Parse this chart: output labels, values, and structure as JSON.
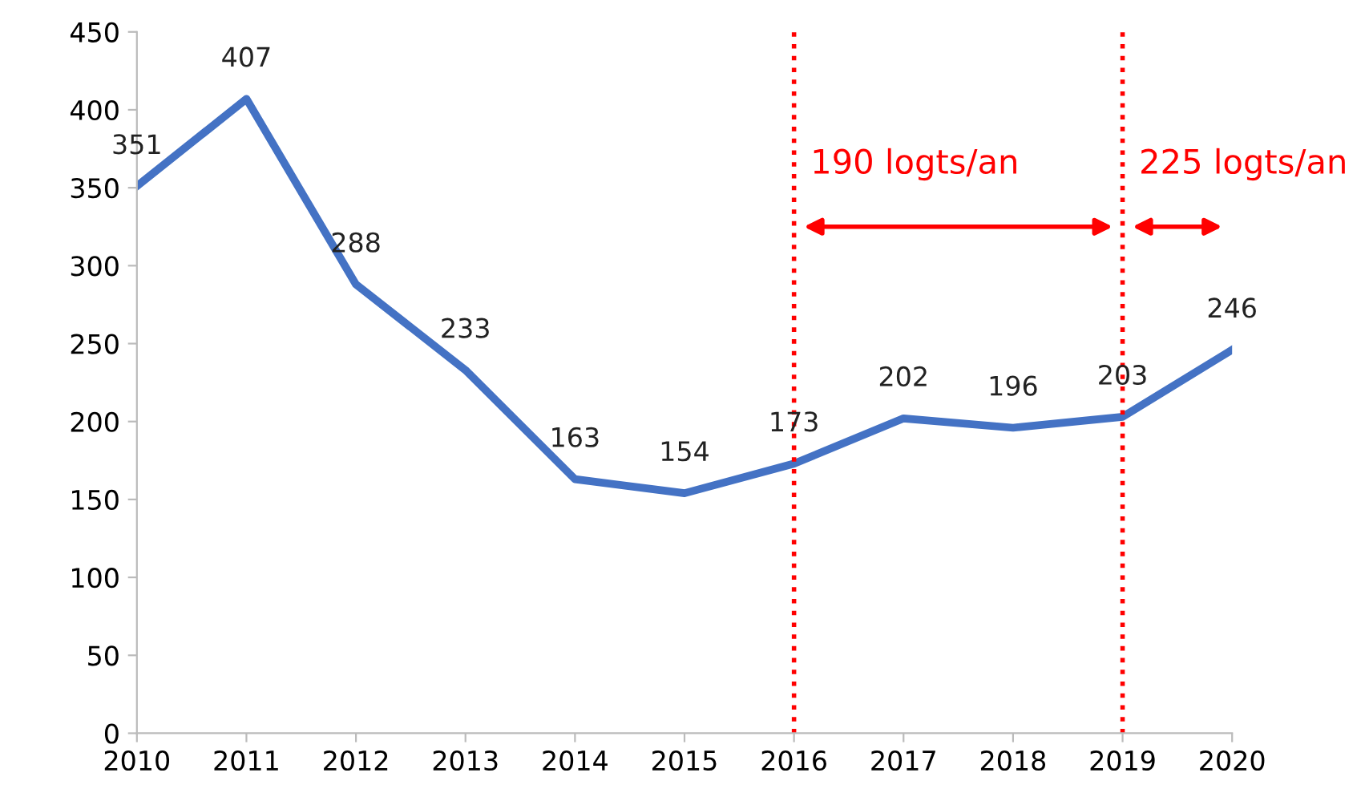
{
  "chart_data": {
    "type": "line",
    "categories": [
      "2010",
      "2011",
      "2012",
      "2013",
      "2014",
      "2015",
      "2016",
      "2017",
      "2018",
      "2019",
      "2020"
    ],
    "series": [
      {
        "color": "#4472c4",
        "values": [
          351,
          407,
          288,
          233,
          163,
          154,
          173,
          202,
          196,
          203,
          246
        ]
      }
    ],
    "ylim": [
      0,
      450
    ],
    "yticks": [
      0,
      50,
      100,
      150,
      200,
      250,
      300,
      350,
      400,
      450
    ],
    "grid": false,
    "data_labels": true,
    "marker": "none",
    "line_style": "solid",
    "ref_lines": [
      {
        "axis": "x",
        "value": "2016",
        "color": "#ff0000",
        "line_style": "dotted"
      },
      {
        "axis": "x",
        "value": "2019",
        "color": "#ff0000",
        "line_style": "dotted"
      }
    ],
    "annotations": [
      "190 logts/an",
      "225 logts/an"
    ]
  }
}
